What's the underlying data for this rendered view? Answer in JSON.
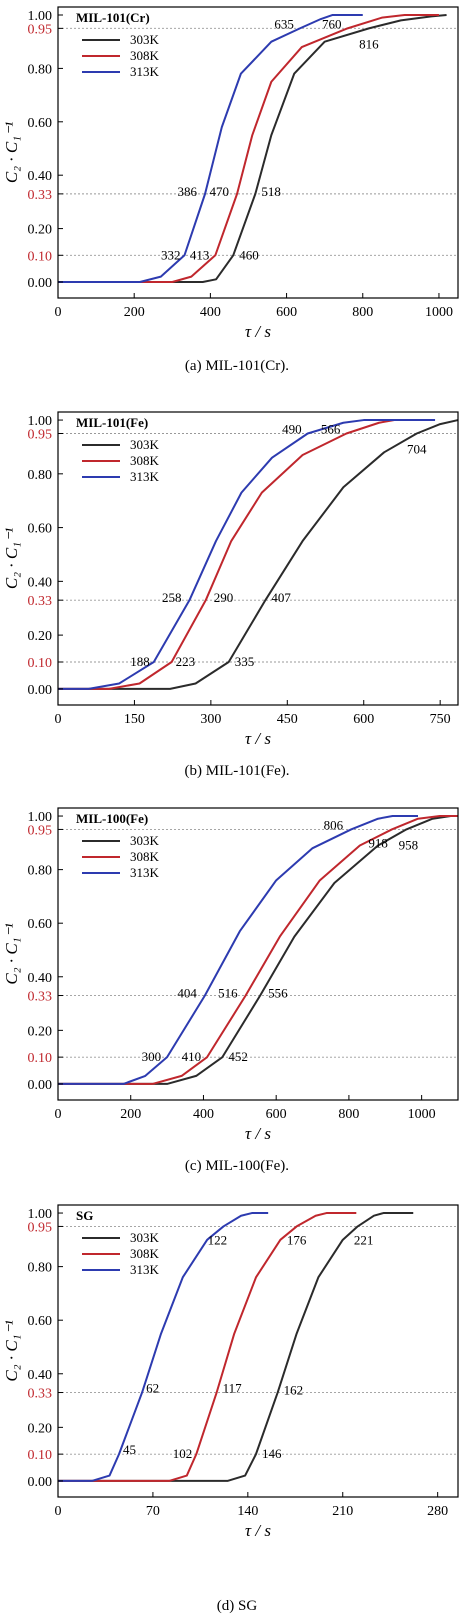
{
  "colors": {
    "303K": "#2b2b2b",
    "308K": "#c0272d",
    "313K": "#2d3bb0",
    "highlight_tick": "#c0272d",
    "ref_line": "#999999"
  },
  "chart_data": [
    {
      "type": "line",
      "caption": "(a) MIL-101(Cr).",
      "legend_title": "MIL-101(Cr)",
      "legend_position": "top-left",
      "xlabel": "τ / s",
      "ylabel": "C₂ · C₁⁻¹",
      "xlim": [
        0,
        1050
      ],
      "ylim": [
        -0.06,
        1.03
      ],
      "x_ticks": [
        "0",
        "200",
        "400",
        "600",
        "800",
        "1000"
      ],
      "y_ticks": [
        "0.00",
        "0.10",
        "0.20",
        "0.33",
        "0.40",
        "0.60",
        "0.80",
        "0.95",
        "1.00"
      ],
      "red_ticks": [
        "0.10",
        "0.33",
        "0.95"
      ],
      "ref_lines": [
        0.1,
        0.33,
        0.95
      ],
      "series": [
        {
          "name": "303K",
          "color_key": "303K",
          "points": [
            [
              0,
              0
            ],
            [
              380,
              0
            ],
            [
              415,
              0.01
            ],
            [
              460,
              0.1
            ],
            [
              518,
              0.33
            ],
            [
              560,
              0.55
            ],
            [
              620,
              0.78
            ],
            [
              700,
              0.9
            ],
            [
              816,
              0.95
            ],
            [
              900,
              0.98
            ],
            [
              980,
              0.995
            ],
            [
              1020,
              1.0
            ]
          ]
        },
        {
          "name": "308K",
          "color_key": "308K",
          "points": [
            [
              0,
              0
            ],
            [
              300,
              0
            ],
            [
              350,
              0.02
            ],
            [
              413,
              0.1
            ],
            [
              470,
              0.33
            ],
            [
              510,
              0.55
            ],
            [
              560,
              0.75
            ],
            [
              640,
              0.88
            ],
            [
              760,
              0.95
            ],
            [
              850,
              0.99
            ],
            [
              910,
              1.0
            ],
            [
              1000,
              1.0
            ]
          ]
        },
        {
          "name": "313K",
          "color_key": "313K",
          "points": [
            [
              0,
              0
            ],
            [
              215,
              0
            ],
            [
              270,
              0.02
            ],
            [
              332,
              0.1
            ],
            [
              386,
              0.33
            ],
            [
              430,
              0.58
            ],
            [
              480,
              0.78
            ],
            [
              560,
              0.9
            ],
            [
              635,
              0.95
            ],
            [
              690,
              0.985
            ],
            [
              720,
              1.0
            ],
            [
              800,
              1.0
            ]
          ]
        }
      ],
      "annotations": [
        {
          "text": "635",
          "x": 635,
          "y": 0.95,
          "anchor": "end",
          "dx": -6,
          "dy": -4
        },
        {
          "text": "760",
          "x": 760,
          "y": 0.95,
          "anchor": "end",
          "dx": -6,
          "dy": -4
        },
        {
          "text": "816",
          "x": 816,
          "y": 0.95,
          "anchor": "middle",
          "dx": 0,
          "dy": 16
        },
        {
          "text": "386",
          "x": 386,
          "y": 0.33,
          "anchor": "end",
          "dx": -8,
          "dy": -2
        },
        {
          "text": "470",
          "x": 470,
          "y": 0.33,
          "anchor": "end",
          "dx": -8,
          "dy": -2
        },
        {
          "text": "518",
          "x": 518,
          "y": 0.33,
          "anchor": "start",
          "dx": 6,
          "dy": -2
        },
        {
          "text": "332",
          "x": 332,
          "y": 0.1,
          "anchor": "end",
          "dx": -4,
          "dy": 0
        },
        {
          "text": "413",
          "x": 413,
          "y": 0.1,
          "anchor": "end",
          "dx": -6,
          "dy": 0
        },
        {
          "text": "460",
          "x": 460,
          "y": 0.1,
          "anchor": "start",
          "dx": 6,
          "dy": 0
        }
      ]
    },
    {
      "type": "line",
      "caption": "(b) MIL-101(Fe).",
      "legend_title": "MIL-101(Fe)",
      "legend_position": "top-left",
      "xlabel": "τ / s",
      "ylabel": "C₂ · C₁⁻¹",
      "xlim": [
        0,
        785
      ],
      "ylim": [
        -0.06,
        1.03
      ],
      "x_ticks": [
        "0",
        "150",
        "300",
        "450",
        "600",
        "750"
      ],
      "y_ticks": [
        "0.00",
        "0.10",
        "0.20",
        "0.33",
        "0.40",
        "0.60",
        "0.80",
        "0.95",
        "1.00"
      ],
      "red_ticks": [
        "0.10",
        "0.33",
        "0.95"
      ],
      "ref_lines": [
        0.1,
        0.33,
        0.95
      ],
      "series": [
        {
          "name": "303K",
          "color_key": "303K",
          "points": [
            [
              0,
              0
            ],
            [
              220,
              0
            ],
            [
              270,
              0.02
            ],
            [
              335,
              0.1
            ],
            [
              407,
              0.33
            ],
            [
              480,
              0.55
            ],
            [
              560,
              0.75
            ],
            [
              640,
              0.88
            ],
            [
              704,
              0.95
            ],
            [
              750,
              0.985
            ],
            [
              785,
              1.0
            ]
          ]
        },
        {
          "name": "308K",
          "color_key": "308K",
          "points": [
            [
              0,
              0
            ],
            [
              100,
              0
            ],
            [
              160,
              0.02
            ],
            [
              223,
              0.1
            ],
            [
              290,
              0.33
            ],
            [
              340,
              0.55
            ],
            [
              400,
              0.73
            ],
            [
              480,
              0.87
            ],
            [
              566,
              0.95
            ],
            [
              630,
              0.99
            ],
            [
              660,
              1.0
            ],
            [
              700,
              1.0
            ]
          ]
        },
        {
          "name": "313K",
          "color_key": "313K",
          "points": [
            [
              0,
              0
            ],
            [
              60,
              0
            ],
            [
              120,
              0.02
            ],
            [
              188,
              0.1
            ],
            [
              258,
              0.33
            ],
            [
              310,
              0.55
            ],
            [
              360,
              0.73
            ],
            [
              420,
              0.86
            ],
            [
              490,
              0.95
            ],
            [
              560,
              0.99
            ],
            [
              600,
              1.0
            ],
            [
              740,
              1.0
            ]
          ]
        }
      ],
      "annotations": [
        {
          "text": "490",
          "x": 490,
          "y": 0.95,
          "anchor": "end",
          "dx": -6,
          "dy": -4
        },
        {
          "text": "566",
          "x": 566,
          "y": 0.95,
          "anchor": "end",
          "dx": -6,
          "dy": -4
        },
        {
          "text": "704",
          "x": 704,
          "y": 0.95,
          "anchor": "middle",
          "dx": 0,
          "dy": 16
        },
        {
          "text": "258",
          "x": 258,
          "y": 0.33,
          "anchor": "end",
          "dx": -8,
          "dy": -2
        },
        {
          "text": "290",
          "x": 290,
          "y": 0.33,
          "anchor": "start",
          "dx": 8,
          "dy": -2
        },
        {
          "text": "407",
          "x": 407,
          "y": 0.33,
          "anchor": "start",
          "dx": 6,
          "dy": -2
        },
        {
          "text": "188",
          "x": 188,
          "y": 0.1,
          "anchor": "end",
          "dx": -4,
          "dy": 0
        },
        {
          "text": "223",
          "x": 223,
          "y": 0.1,
          "anchor": "start",
          "dx": 4,
          "dy": 0
        },
        {
          "text": "335",
          "x": 335,
          "y": 0.1,
          "anchor": "start",
          "dx": 6,
          "dy": 0
        }
      ]
    },
    {
      "type": "line",
      "caption": "(c) MIL-100(Fe).",
      "legend_title": "MIL-100(Fe)",
      "legend_position": "top-left",
      "xlabel": "τ / s",
      "ylabel": "C₂ · C₁⁻¹",
      "xlim": [
        0,
        1100
      ],
      "ylim": [
        -0.06,
        1.03
      ],
      "x_ticks": [
        "0",
        "200",
        "400",
        "600",
        "800",
        "1000"
      ],
      "y_ticks": [
        "0.00",
        "0.10",
        "0.20",
        "0.33",
        "0.40",
        "0.60",
        "0.80",
        "0.95",
        "1.00"
      ],
      "red_ticks": [
        "0.10",
        "0.33",
        "0.95"
      ],
      "ref_lines": [
        0.1,
        0.33,
        0.95
      ],
      "series": [
        {
          "name": "303K",
          "color_key": "303K",
          "points": [
            [
              0,
              0
            ],
            [
              300,
              0
            ],
            [
              380,
              0.03
            ],
            [
              452,
              0.1
            ],
            [
              556,
              0.33
            ],
            [
              650,
              0.55
            ],
            [
              760,
              0.75
            ],
            [
              880,
              0.89
            ],
            [
              958,
              0.95
            ],
            [
              1030,
              0.99
            ],
            [
              1080,
              1.0
            ],
            [
              1100,
              1.0
            ]
          ]
        },
        {
          "name": "308K",
          "color_key": "308K",
          "points": [
            [
              0,
              0
            ],
            [
              260,
              0
            ],
            [
              340,
              0.03
            ],
            [
              410,
              0.1
            ],
            [
              516,
              0.33
            ],
            [
              610,
              0.55
            ],
            [
              720,
              0.76
            ],
            [
              830,
              0.89
            ],
            [
              918,
              0.95
            ],
            [
              990,
              0.99
            ],
            [
              1050,
              1.0
            ],
            [
              1100,
              1.0
            ]
          ]
        },
        {
          "name": "313K",
          "color_key": "313K",
          "points": [
            [
              0,
              0
            ],
            [
              180,
              0
            ],
            [
              240,
              0.03
            ],
            [
              300,
              0.1
            ],
            [
              404,
              0.33
            ],
            [
              500,
              0.57
            ],
            [
              600,
              0.76
            ],
            [
              700,
              0.88
            ],
            [
              806,
              0.95
            ],
            [
              880,
              0.99
            ],
            [
              920,
              1.0
            ],
            [
              990,
              1.0
            ]
          ]
        }
      ],
      "annotations": [
        {
          "text": "806",
          "x": 806,
          "y": 0.95,
          "anchor": "end",
          "dx": -8,
          "dy": -4
        },
        {
          "text": "918",
          "x": 918,
          "y": 0.95,
          "anchor": "end",
          "dx": -4,
          "dy": 14
        },
        {
          "text": "958",
          "x": 958,
          "y": 0.95,
          "anchor": "middle",
          "dx": 2,
          "dy": 16
        },
        {
          "text": "404",
          "x": 404,
          "y": 0.33,
          "anchor": "end",
          "dx": -8,
          "dy": -2
        },
        {
          "text": "516",
          "x": 516,
          "y": 0.33,
          "anchor": "end",
          "dx": -8,
          "dy": -2
        },
        {
          "text": "556",
          "x": 556,
          "y": 0.33,
          "anchor": "start",
          "dx": 8,
          "dy": -2
        },
        {
          "text": "300",
          "x": 300,
          "y": 0.1,
          "anchor": "end",
          "dx": -6,
          "dy": 0
        },
        {
          "text": "410",
          "x": 410,
          "y": 0.1,
          "anchor": "end",
          "dx": -6,
          "dy": 0
        },
        {
          "text": "452",
          "x": 452,
          "y": 0.1,
          "anchor": "start",
          "dx": 6,
          "dy": 0
        }
      ]
    },
    {
      "type": "line",
      "caption": "(d) SG",
      "legend_title": "SG",
      "legend_position": "top-left",
      "xlabel": "τ / s",
      "ylabel": "C₂ · C₁⁻¹",
      "xlim": [
        0,
        295
      ],
      "ylim": [
        -0.06,
        1.03
      ],
      "x_ticks": [
        "0",
        "70",
        "140",
        "210",
        "280"
      ],
      "y_ticks": [
        "0.00",
        "0.10",
        "0.20",
        "0.33",
        "0.40",
        "0.60",
        "0.80",
        "0.95",
        "1.00"
      ],
      "red_ticks": [
        "0.10",
        "0.33",
        "0.95"
      ],
      "ref_lines": [
        0.1,
        0.33,
        0.95
      ],
      "series": [
        {
          "name": "303K",
          "color_key": "303K",
          "points": [
            [
              0,
              0
            ],
            [
              125,
              0
            ],
            [
              138,
              0.02
            ],
            [
              146,
              0.1
            ],
            [
              162,
              0.33
            ],
            [
              176,
              0.55
            ],
            [
              192,
              0.76
            ],
            [
              210,
              0.9
            ],
            [
              221,
              0.95
            ],
            [
              233,
              0.99
            ],
            [
              240,
              1.0
            ],
            [
              262,
              1.0
            ]
          ]
        },
        {
          "name": "308K",
          "color_key": "308K",
          "points": [
            [
              0,
              0
            ],
            [
              82,
              0
            ],
            [
              95,
              0.02
            ],
            [
              102,
              0.1
            ],
            [
              117,
              0.33
            ],
            [
              130,
              0.55
            ],
            [
              146,
              0.76
            ],
            [
              164,
              0.9
            ],
            [
              176,
              0.95
            ],
            [
              190,
              0.99
            ],
            [
              198,
              1.0
            ],
            [
              220,
              1.0
            ]
          ]
        },
        {
          "name": "313K",
          "color_key": "313K",
          "points": [
            [
              0,
              0
            ],
            [
              25,
              0
            ],
            [
              38,
              0.02
            ],
            [
              45,
              0.1
            ],
            [
              62,
              0.33
            ],
            [
              76,
              0.55
            ],
            [
              92,
              0.76
            ],
            [
              110,
              0.9
            ],
            [
              122,
              0.95
            ],
            [
              135,
              0.99
            ],
            [
              143,
              1.0
            ],
            [
              155,
              1.0
            ]
          ]
        }
      ],
      "annotations": [
        {
          "text": "122",
          "x": 122,
          "y": 0.95,
          "anchor": "middle",
          "dx": -6,
          "dy": 14
        },
        {
          "text": "176",
          "x": 176,
          "y": 0.95,
          "anchor": "middle",
          "dx": 0,
          "dy": 14
        },
        {
          "text": "221",
          "x": 221,
          "y": 0.95,
          "anchor": "middle",
          "dx": 6,
          "dy": 14
        },
        {
          "text": "62",
          "x": 62,
          "y": 0.33,
          "anchor": "start",
          "dx": 4,
          "dy": -4
        },
        {
          "text": "117",
          "x": 117,
          "y": 0.33,
          "anchor": "start",
          "dx": 6,
          "dy": -4
        },
        {
          "text": "162",
          "x": 162,
          "y": 0.33,
          "anchor": "start",
          "dx": 6,
          "dy": -2
        },
        {
          "text": "45",
          "x": 45,
          "y": 0.1,
          "anchor": "start",
          "dx": 4,
          "dy": -4
        },
        {
          "text": "102",
          "x": 102,
          "y": 0.1,
          "anchor": "end",
          "dx": -4,
          "dy": 0
        },
        {
          "text": "146",
          "x": 146,
          "y": 0.1,
          "anchor": "start",
          "dx": 6,
          "dy": 0
        }
      ]
    }
  ]
}
